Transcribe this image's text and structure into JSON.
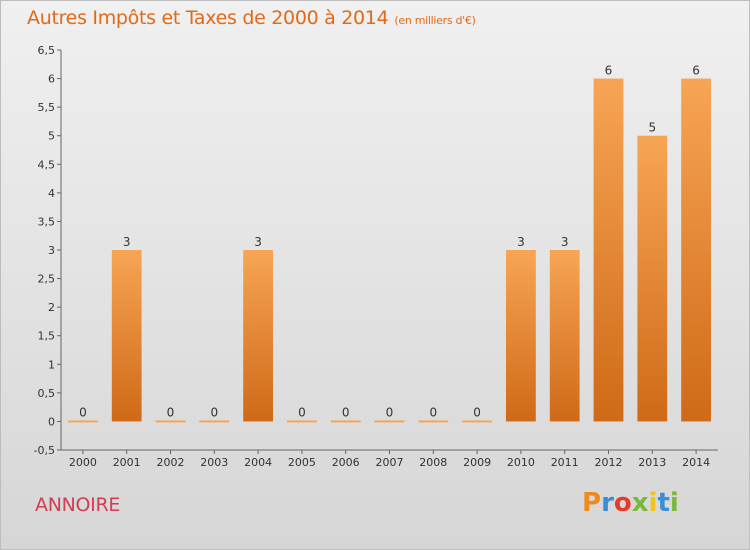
{
  "header": {
    "title": "Autres Impôts et Taxes de 2000 à 2014",
    "unit": "(en milliers d'€)"
  },
  "footer": {
    "city": "ANNOIRE",
    "logo_text": "Proxiti",
    "logo_colors": [
      "#f08a1c",
      "#3a8fd4",
      "#e83a2a",
      "#7ab83a",
      "#f0c419",
      "#3a8fd4",
      "#7ab83a"
    ]
  },
  "colors": {
    "bar_top": "#f7a555",
    "bar_bottom": "#cf6a17",
    "title": "#e06a1a",
    "city": "#d13d52"
  },
  "chart_data": {
    "type": "bar",
    "title": "Autres Impôts et Taxes de 2000 à 2014",
    "subtitle": "(en milliers d'€)",
    "xlabel": "",
    "ylabel": "",
    "categories": [
      "2000",
      "2001",
      "2002",
      "2003",
      "2004",
      "2005",
      "2006",
      "2007",
      "2008",
      "2009",
      "2010",
      "2011",
      "2012",
      "2013",
      "2014"
    ],
    "values": [
      0,
      3,
      0,
      0,
      3,
      0,
      0,
      0,
      0,
      0,
      3,
      3,
      6,
      5,
      6
    ],
    "value_labels": [
      "0",
      "3",
      "0",
      "0",
      "3",
      "0",
      "0",
      "0",
      "0",
      "0",
      "3",
      "3",
      "6",
      "5",
      "6"
    ],
    "ylim": [
      -0.5,
      6.5
    ],
    "yticks": [
      "-0,5",
      "0",
      "0,5",
      "1",
      "1,5",
      "2",
      "2,5",
      "3",
      "3,5",
      "4",
      "4,5",
      "5",
      "5,5",
      "6",
      "6,5"
    ],
    "ytick_values": [
      -0.5,
      0,
      0.5,
      1,
      1.5,
      2,
      2.5,
      3,
      3.5,
      4,
      4.5,
      5,
      5.5,
      6,
      6.5
    ],
    "grid": false,
    "legend": "none"
  }
}
